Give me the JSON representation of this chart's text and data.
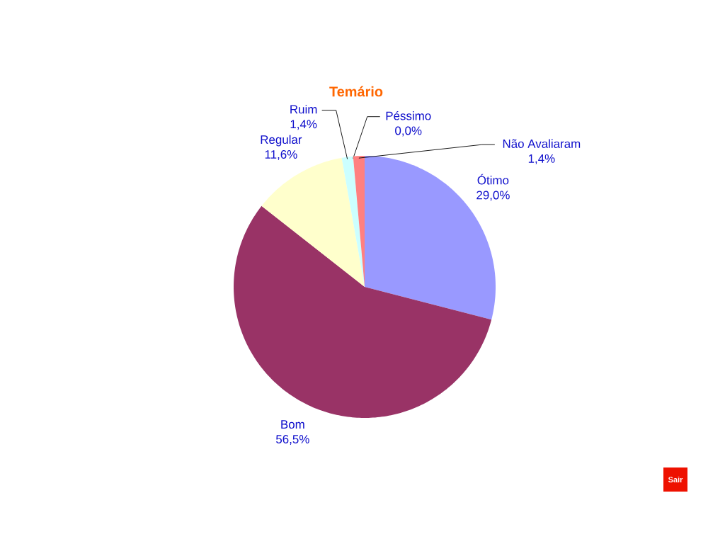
{
  "chart_data": {
    "type": "pie",
    "title": "Temário",
    "categories": [
      "Ótimo",
      "Bom",
      "Regular",
      "Ruim",
      "Péssimo",
      "Não Avaliaram"
    ],
    "values": [
      29.0,
      56.5,
      11.6,
      1.4,
      0.0,
      1.4
    ],
    "value_labels": [
      "29,0%",
      "56,5%",
      "11,6%",
      "1,4%",
      "0,0%",
      "1,4%"
    ],
    "colors": [
      "#9999ff",
      "#993366",
      "#ffffcc",
      "#ccffff",
      "#660066",
      "#ff8080"
    ],
    "annotations": [
      "Sair"
    ]
  }
}
